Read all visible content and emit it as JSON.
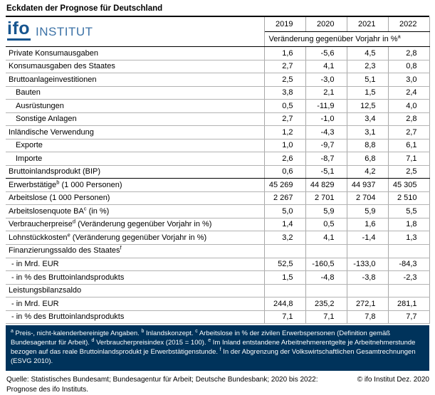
{
  "title": "Eckdaten der Prognose für Deutschland",
  "logo": {
    "ifo": "ifo",
    "institut": "INSTITUT"
  },
  "colors": {
    "brand_blue": "#17558f",
    "institut_blue": "#3c72a6",
    "panel_navy": "#00335b"
  },
  "table": {
    "years": [
      "2019",
      "2020",
      "2021",
      "2022"
    ],
    "subheader": {
      "text": "Veränderung gegenüber Vorjahr in %",
      "sup": "a"
    },
    "rows": [
      {
        "label": "Private Konsumausgaben",
        "indent": 0,
        "values": [
          "1,6",
          "-5,6",
          "4,5",
          "2,8"
        ]
      },
      {
        "label": "Konsumausgaben des Staates",
        "indent": 0,
        "values": [
          "2,7",
          "4,1",
          "2,3",
          "0,8"
        ]
      },
      {
        "label": "Bruttoanlageinvestitionen",
        "indent": 0,
        "values": [
          "2,5",
          "-3,0",
          "5,1",
          "3,0"
        ]
      },
      {
        "label": "Bauten",
        "indent": 1,
        "values": [
          "3,8",
          "2,1",
          "1,5",
          "2,4"
        ]
      },
      {
        "label": "Ausrüstungen",
        "indent": 1,
        "values": [
          "0,5",
          "-11,9",
          "12,5",
          "4,0"
        ]
      },
      {
        "label": "Sonstige Anlagen",
        "indent": 1,
        "values": [
          "2,7",
          "-1,0",
          "3,4",
          "2,8"
        ]
      },
      {
        "label": "Inländische Verwendung",
        "indent": 0,
        "values": [
          "1,2",
          "-4,3",
          "3,1",
          "2,7"
        ]
      },
      {
        "label": "Exporte",
        "indent": 1,
        "values": [
          "1,0",
          "-9,7",
          "8,8",
          "6,1"
        ]
      },
      {
        "label": "Importe",
        "indent": 1,
        "values": [
          "2,6",
          "-8,7",
          "6,8",
          "7,1"
        ]
      },
      {
        "label": "Bruttoinlandsprodukt (BIP)",
        "indent": 0,
        "values": [
          "0,6",
          "-5,1",
          "4,2",
          "2,5"
        ],
        "thick": true
      },
      {
        "label": "Erwerbstätige",
        "sup": "b",
        "after": " (1 000 Personen)",
        "indent": 0,
        "values": [
          "45 269",
          "44 829",
          "44 937",
          "45 305"
        ]
      },
      {
        "label": "Arbeitslose (1 000 Personen)",
        "indent": 0,
        "values": [
          "2 267",
          "2 701",
          "2 704",
          "2 510"
        ]
      },
      {
        "label": "Arbeitslosenquote BA",
        "sup": "c",
        "after": " (in %)",
        "indent": 0,
        "values": [
          "5,0",
          "5,9",
          "5,9",
          "5,5"
        ]
      },
      {
        "label": "Verbraucherpreise",
        "sup": "d",
        "after": " (Veränderung gegenüber Vorjahr in %)",
        "indent": 0,
        "values": [
          "1,4",
          "0,5",
          "1,6",
          "1,8"
        ]
      },
      {
        "label": "Lohnstückkosten",
        "sup": "e",
        "after": " (Veränderung gegenüber Vorjahr in %)",
        "indent": 0,
        "values": [
          "3,2",
          "4,1",
          "-1,4",
          "1,3"
        ]
      },
      {
        "label": "Finanzierungssaldo des Staates",
        "sup": "f",
        "indent": 0,
        "values": [
          "",
          "",
          "",
          ""
        ]
      },
      {
        "label": "- in Mrd. EUR",
        "indent": 0.4,
        "values": [
          "52,5",
          "-160,5",
          "-133,0",
          "-84,3"
        ]
      },
      {
        "label": "- in % des Bruttoinlandsprodukts",
        "indent": 0.4,
        "values": [
          "1,5",
          "-4,8",
          "-3,8",
          "-2,3"
        ]
      },
      {
        "label": "Leistungsbilanzsaldo",
        "indent": 0,
        "values": [
          "",
          "",
          "",
          ""
        ]
      },
      {
        "label": "- in Mrd. EUR",
        "indent": 0.4,
        "values": [
          "244,8",
          "235,2",
          "272,1",
          "281,1"
        ]
      },
      {
        "label": "- in % des Bruttoinlandsprodukts",
        "indent": 0.4,
        "values": [
          "7,1",
          "7,1",
          "7,8",
          "7,7"
        ]
      }
    ]
  },
  "footnotes": [
    {
      "sup": "a",
      "text": " Preis-, nicht-kalenderbereinigte Angaben. "
    },
    {
      "sup": "b",
      "text": " Inlandskonzept. "
    },
    {
      "sup": "c",
      "text": " Arbeitslose in % der zivilen Erwerbspersonen (Definition gemäß Bundesagentur für Arbeit). "
    },
    {
      "sup": "d",
      "text": " Verbraucherpreisindex (2015 = 100). "
    },
    {
      "sup": "e",
      "text": " Im Inland entstandene Arbeitnehmerentgelte je Arbeitnehmerstunde bezogen auf das reale Bruttoinlandsprodukt je Erwerbstätigenstunde. "
    },
    {
      "sup": "f",
      "text": " In der Abgrenzung der Volkswirtschaftlichen Gesamtrechnungen (ESVG 2010)."
    }
  ],
  "source": "Quelle: Statistisches Bundesamt; Bundesagentur für Arbeit; Deutsche Bundesbank; 2020 bis 2022: Prognose des ifo Instituts.",
  "copyright": "© ifo Institut Dez. 2020"
}
